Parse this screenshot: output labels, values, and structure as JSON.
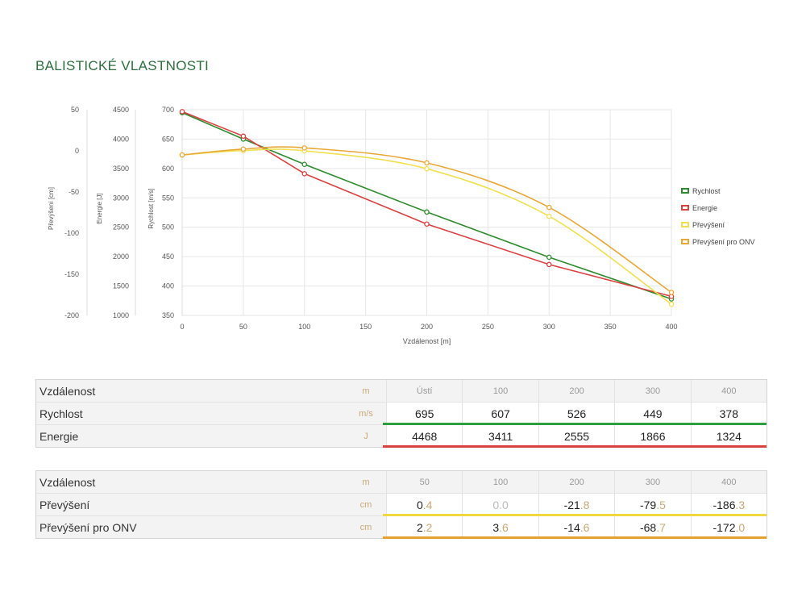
{
  "page_title": "BALISTICKÉ VLASTNOSTI",
  "colors": {
    "green": "#2e8b2e",
    "red": "#d94040",
    "yellow": "#f0e050",
    "orange": "#e8a838"
  },
  "chart_data": {
    "type": "line",
    "xlabel": "Vzdálenost [m]",
    "x_ticks": [
      "0",
      "50",
      "100",
      "150",
      "200",
      "250",
      "300",
      "350",
      "400"
    ],
    "xlim": [
      0,
      400
    ],
    "axes": [
      {
        "label": "Převýšení [cm]",
        "ticks": [
          "50",
          "0",
          "-50",
          "-100",
          "-150",
          "-200"
        ],
        "range": [
          -200,
          50
        ]
      },
      {
        "label": "Energie [J]",
        "ticks": [
          "4500",
          "4000",
          "3500",
          "3000",
          "2500",
          "2000",
          "1500",
          "1000"
        ],
        "range": [
          1000,
          4500
        ]
      },
      {
        "label": "Rychlost [m/s]",
        "ticks": [
          "700",
          "650",
          "600",
          "550",
          "500",
          "450",
          "400",
          "350"
        ],
        "range": [
          350,
          700
        ]
      }
    ],
    "grid": true,
    "legend_position": "right",
    "series": [
      {
        "name": "Rychlost",
        "axis": 2,
        "color": "#2e8b2e",
        "x": [
          0,
          50,
          100,
          200,
          300,
          400
        ],
        "y": [
          695,
          650,
          607,
          526,
          449,
          378
        ]
      },
      {
        "name": "Energie",
        "axis": 1,
        "color": "#d94040",
        "x": [
          0,
          50,
          100,
          200,
          300,
          400
        ],
        "y": [
          4468,
          4050,
          3411,
          2555,
          1866,
          1324
        ]
      },
      {
        "name": "Převýšení",
        "axis": 0,
        "color": "#f0e050",
        "x": [
          0,
          50,
          100,
          200,
          300,
          400
        ],
        "y": [
          -5,
          0.4,
          0,
          -21.8,
          -79.5,
          -186.3
        ]
      },
      {
        "name": "Převýšení pro ONV",
        "axis": 0,
        "color": "#e8a838",
        "x": [
          0,
          50,
          100,
          200,
          300,
          400
        ],
        "y": [
          -5,
          2.2,
          3.6,
          -14.6,
          -68.7,
          -172.0
        ]
      }
    ]
  },
  "table1": {
    "header": {
      "label": "Vzdálenost",
      "unit": "m",
      "cols": [
        "Ústí",
        "100",
        "200",
        "300",
        "400"
      ]
    },
    "rows": [
      {
        "label": "Rychlost",
        "unit": "m/s",
        "values": [
          "695",
          "607",
          "526",
          "449",
          "378"
        ],
        "bar": "#2e9e3e"
      },
      {
        "label": "Energie",
        "unit": "J",
        "values": [
          "4468",
          "3411",
          "2555",
          "1866",
          "1324"
        ],
        "bar": "#d94040"
      }
    ]
  },
  "table2": {
    "header": {
      "label": "Vzdálenost",
      "unit": "m",
      "cols": [
        "50",
        "100",
        "200",
        "300",
        "400"
      ]
    },
    "rows": [
      {
        "label": "Převýšení",
        "unit": "cm",
        "values": [
          [
            "0",
            ".4"
          ],
          [
            "0",
            ".0"
          ],
          [
            "-21",
            ".8"
          ],
          [
            "-79",
            ".5"
          ],
          [
            "-186",
            ".3"
          ]
        ],
        "dim_index": 1,
        "bar": "#f0d840"
      },
      {
        "label": "Převýšení pro ONV",
        "unit": "cm",
        "values": [
          [
            "2",
            ".2"
          ],
          [
            "3",
            ".6"
          ],
          [
            "-14",
            ".6"
          ],
          [
            "-68",
            ".7"
          ],
          [
            "-172",
            ".0"
          ]
        ],
        "dim_index": -1,
        "bar": "#e8a030"
      }
    ]
  }
}
